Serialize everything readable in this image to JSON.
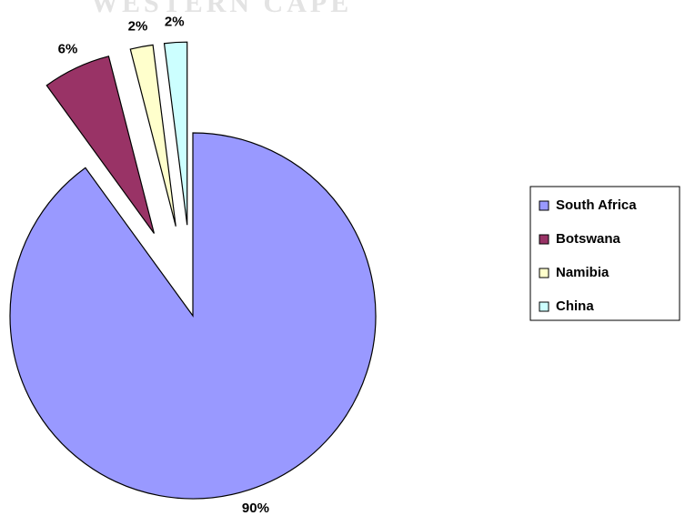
{
  "watermark": "WESTERN CAPE",
  "chart_data": {
    "type": "pie",
    "categories": [
      "South Africa",
      "Botswana",
      "Namibia",
      "China"
    ],
    "values": [
      90,
      6,
      2,
      2
    ],
    "value_labels": [
      "90%",
      "6%",
      "2%",
      "2%"
    ],
    "colors": [
      "#9999ff",
      "#993366",
      "#ffffcc",
      "#ccffff"
    ],
    "exploded": [
      false,
      true,
      true,
      true
    ],
    "legend": "right"
  }
}
